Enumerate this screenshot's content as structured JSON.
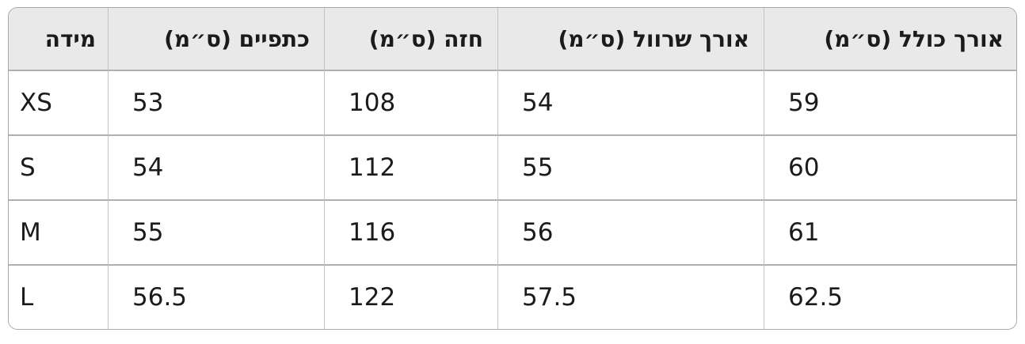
{
  "colors": {
    "header_bg": "#e9e9ea",
    "row_bg": "#ffffff",
    "grid_horizontal": "#b0b0b2",
    "grid_vertical": "#c2c2c4",
    "outer_border": "#a8a8aa",
    "text": "#1b1b1d"
  },
  "table": {
    "headers": {
      "size": "מידה",
      "shoulders": "כתפיים (ס״מ)",
      "chest": "חזה (ס״מ)",
      "sleeve": "אורך שרוול (ס״מ)",
      "total_length": "אורך כולל (ס״מ)"
    },
    "rows": [
      {
        "size": "XS",
        "shoulders": "53",
        "chest": "108",
        "sleeve": "54",
        "total_length": "59"
      },
      {
        "size": "S",
        "shoulders": "54",
        "chest": "112",
        "sleeve": "55",
        "total_length": "60"
      },
      {
        "size": "M",
        "shoulders": "55",
        "chest": "116",
        "sleeve": "56",
        "total_length": "61"
      },
      {
        "size": "L",
        "shoulders": "56.5",
        "chest": "122",
        "sleeve": "57.5",
        "total_length": "62.5"
      }
    ]
  },
  "chart_data": {
    "type": "table",
    "title": "",
    "columns": [
      "מידה",
      "כתפיים (ס״מ)",
      "חזה (ס״מ)",
      "אורך שרוול (ס״מ)",
      "אורך כולל (ס״מ)"
    ],
    "rows": [
      [
        "XS",
        53,
        108,
        54,
        59
      ],
      [
        "S",
        54,
        112,
        55,
        60
      ],
      [
        "M",
        55,
        116,
        56,
        61
      ],
      [
        "L",
        56.5,
        122,
        57.5,
        62.5
      ]
    ]
  }
}
